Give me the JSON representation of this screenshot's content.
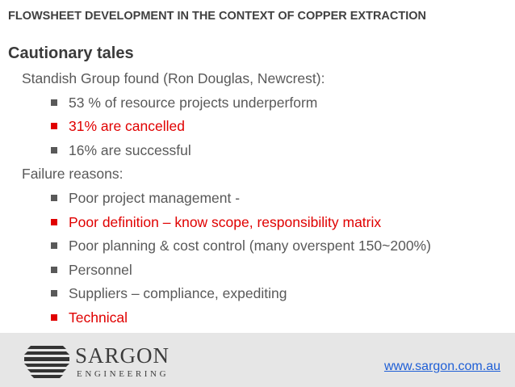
{
  "header": {
    "title": "FLOWSHEET DEVELOPMENT IN THE CONTEXT OF COPPER EXTRACTION",
    "subtitle": "Cautionary tales"
  },
  "items": [
    {
      "text": "Standish Group found (Ron Douglas, Newcrest):",
      "level": 1
    },
    {
      "text": "53 % of resource projects underperform",
      "level": 2
    },
    {
      "text": "31% are cancelled",
      "level": 2,
      "highlight": true
    },
    {
      "text": "16% are successful",
      "level": 2
    },
    {
      "text": "Failure reasons:",
      "level": 1
    },
    {
      "text": "Poor project management -",
      "level": 2
    },
    {
      "text": "Poor definition – know scope, responsibility matrix",
      "level": 2,
      "highlight": true
    },
    {
      "text": "Poor planning & cost control (many overspent 150~200%)",
      "level": 2
    },
    {
      "text": "Personnel",
      "level": 2
    },
    {
      "text": "Suppliers – compliance, expediting",
      "level": 2
    },
    {
      "text": "Technical",
      "level": 2,
      "highlight": true
    }
  ],
  "footer": {
    "brand": "SARGON",
    "brand_sub": "ENGINEERING",
    "url": "www.sargon.com.au"
  }
}
